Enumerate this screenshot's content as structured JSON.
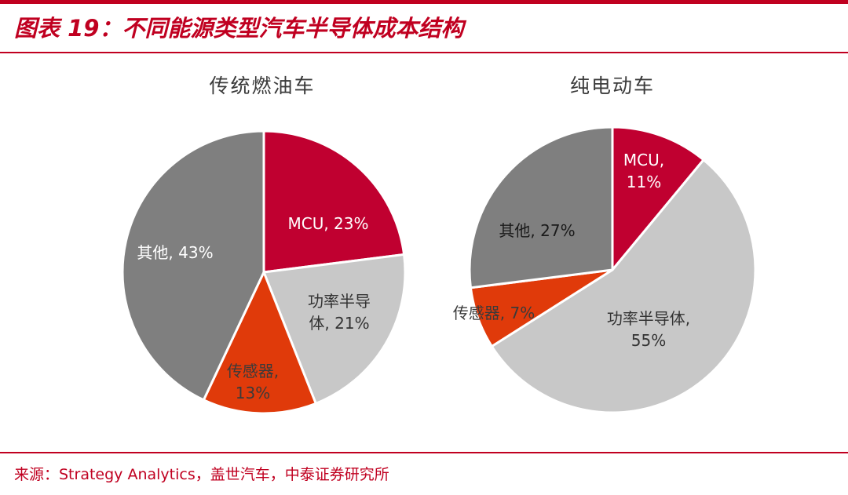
{
  "header": {
    "title": "图表 19：不同能源类型汽车半导体成本结构"
  },
  "footer": {
    "source": "来源：Strategy Analytics，盖世汽车，中泰证券研究所"
  },
  "colors": {
    "brand": "#c00020",
    "mcu": "#c00030",
    "power": "#c8c8c8",
    "sensor": "#e03a0a",
    "other": "#7f7f7f"
  },
  "chart_data": [
    {
      "type": "pie",
      "title": "传统燃油车",
      "slices": [
        {
          "label": "MCU, 23%",
          "value": 23,
          "color": "#c00030",
          "text_color": "#ffffff",
          "lines": [
            "MCU, 23%"
          ]
        },
        {
          "label": "功率半导体, 21%",
          "value": 21,
          "color": "#c8c8c8",
          "text_color": "#333333",
          "lines": [
            "功率半导",
            "体, 21%"
          ]
        },
        {
          "label": "传感器, 13%",
          "value": 13,
          "color": "#e03a0a",
          "text_color": "#3a3a3a",
          "lines": [
            "传感器,",
            "13%"
          ]
        },
        {
          "label": "其他, 43%",
          "value": 43,
          "color": "#7f7f7f",
          "text_color": "#ffffff",
          "lines": [
            "其他, 43%"
          ]
        }
      ]
    },
    {
      "type": "pie",
      "title": "纯电动车",
      "slices": [
        {
          "label": "MCU, 11%",
          "value": 11,
          "color": "#c00030",
          "text_color": "#ffffff",
          "lines": [
            "MCU,",
            "11%"
          ]
        },
        {
          "label": "功率半导体, 55%",
          "value": 55,
          "color": "#c8c8c8",
          "text_color": "#333333",
          "lines": [
            "功率半导体,",
            "55%"
          ]
        },
        {
          "label": "传感器, 7%",
          "value": 7,
          "color": "#e03a0a",
          "text_color": "#3a3a3a",
          "lines": [
            "传感器, 7%"
          ]
        },
        {
          "label": "其他, 27%",
          "value": 27,
          "color": "#7f7f7f",
          "text_color": "#1a1a1a",
          "lines": [
            "其他, 27%"
          ]
        }
      ]
    }
  ]
}
